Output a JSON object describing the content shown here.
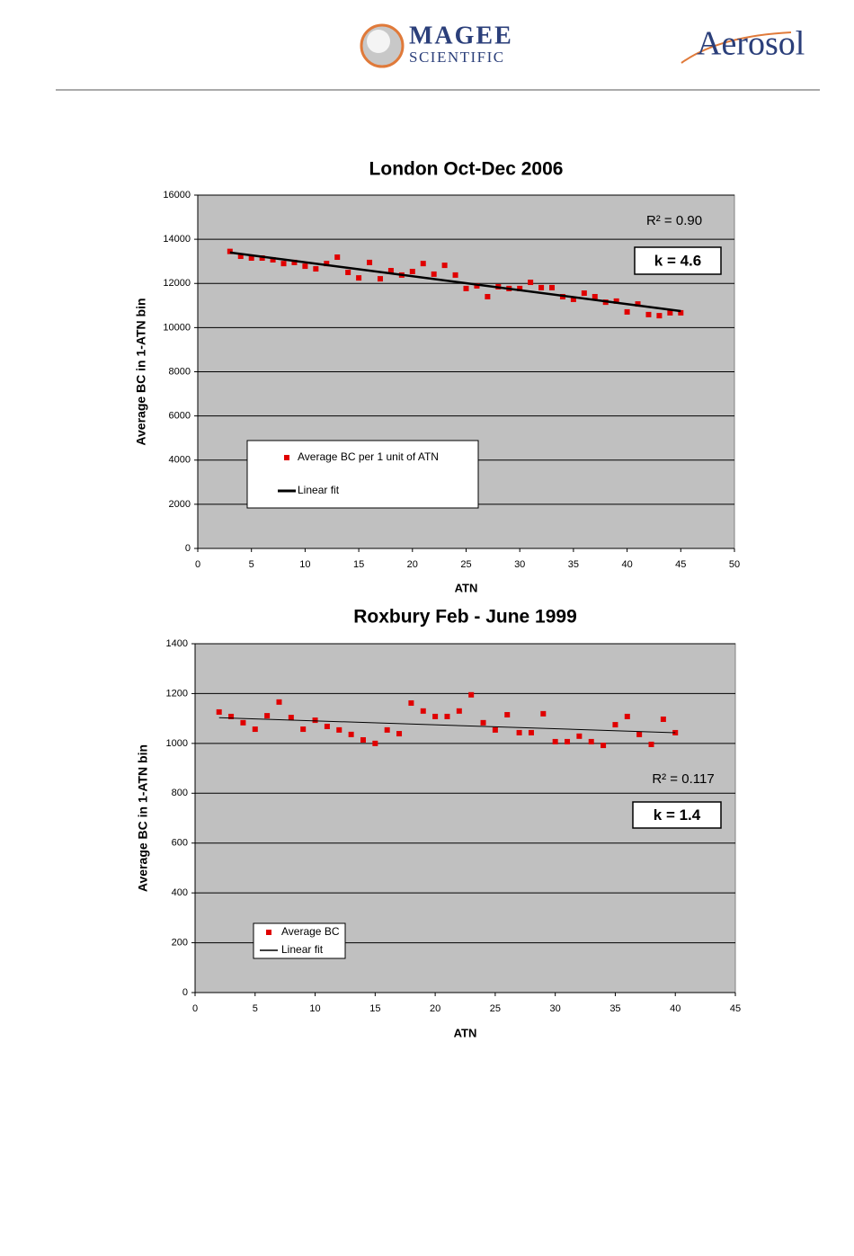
{
  "header": {
    "logo_left_top": "MAGEE",
    "logo_left_bottom": "SCIENTIFIC",
    "logo_right": "Aerosol"
  },
  "chart_data": [
    {
      "type": "scatter",
      "title": "London Oct-Dec 2006",
      "x_label": "ATN",
      "y_label": "Average BC in 1-ATN bin",
      "xlim": [
        0,
        50
      ],
      "xticks": [
        0,
        5,
        10,
        15,
        20,
        25,
        30,
        35,
        40,
        45,
        50
      ],
      "ylim": [
        0,
        16000
      ],
      "yticks": [
        0,
        2000,
        4000,
        6000,
        8000,
        10000,
        12000,
        14000,
        16000
      ],
      "grid": true,
      "plot_background": "#c0c0c0",
      "annotations": [
        "R² = 0.90",
        "k = 4.6"
      ],
      "series": [
        {
          "name": "Average BC per 1 unit of ATN",
          "color": "#e00000",
          "x": [
            3,
            4,
            5,
            6,
            7,
            8,
            9,
            10,
            11,
            12,
            13,
            14,
            15,
            16,
            17,
            18,
            19,
            20,
            21,
            22,
            23,
            24,
            25,
            26,
            27,
            28,
            29,
            30,
            31,
            32,
            33,
            34,
            35,
            36,
            37,
            38,
            39,
            40,
            41,
            42,
            43,
            44,
            45
          ],
          "values": [
            13450,
            13230,
            13150,
            13150,
            13070,
            12900,
            12950,
            12780,
            12660,
            12900,
            13190,
            12500,
            12250,
            12950,
            12210,
            12580,
            12380,
            12540,
            12900,
            12420,
            12820,
            12380,
            11770,
            11890,
            11400,
            11850,
            11770,
            11770,
            12050,
            11810,
            11810,
            11400,
            11280,
            11560,
            11400,
            11150,
            11200,
            10710,
            11070,
            10590,
            10540,
            10670,
            10670
          ]
        },
        {
          "name": "Linear fit",
          "color": "#000000",
          "mode": "line",
          "x": [
            3,
            45
          ],
          "values": [
            13400,
            10750
          ]
        }
      ]
    },
    {
      "type": "scatter",
      "title": "Roxbury   Feb - June 1999",
      "x_label": "ATN",
      "y_label": "Average BC in 1-ATN bin",
      "xlim": [
        0,
        45
      ],
      "xticks": [
        0,
        5,
        10,
        15,
        20,
        25,
        30,
        35,
        40,
        45
      ],
      "ylim": [
        0,
        1400
      ],
      "yticks": [
        0,
        200,
        400,
        600,
        800,
        1000,
        1200,
        1400
      ],
      "grid": true,
      "plot_background": "#c0c0c0",
      "annotations": [
        "R² = 0.117",
        "k = 1.4"
      ],
      "series": [
        {
          "name": "Average BC",
          "color": "#e00000",
          "x": [
            2,
            3,
            4,
            5,
            6,
            7,
            8,
            9,
            10,
            11,
            12,
            13,
            14,
            15,
            16,
            17,
            18,
            19,
            20,
            21,
            22,
            23,
            24,
            25,
            26,
            27,
            28,
            29,
            30,
            31,
            32,
            33,
            34,
            35,
            36,
            37,
            38,
            39,
            40
          ],
          "values": [
            1126,
            1108,
            1083,
            1057,
            1111,
            1166,
            1104,
            1057,
            1093,
            1068,
            1054,
            1036,
            1014,
            1000,
            1054,
            1039,
            1162,
            1130,
            1108,
            1108,
            1130,
            1195,
            1083,
            1054,
            1115,
            1043,
            1043,
            1119,
            1007,
            1007,
            1029,
            1007,
            992,
            1075,
            1108,
            1036,
            996,
            1097,
            1043
          ]
        },
        {
          "name": "Linear fit",
          "color": "#000000",
          "mode": "line",
          "x": [
            2,
            40
          ],
          "values": [
            1103,
            1043
          ]
        }
      ]
    }
  ]
}
